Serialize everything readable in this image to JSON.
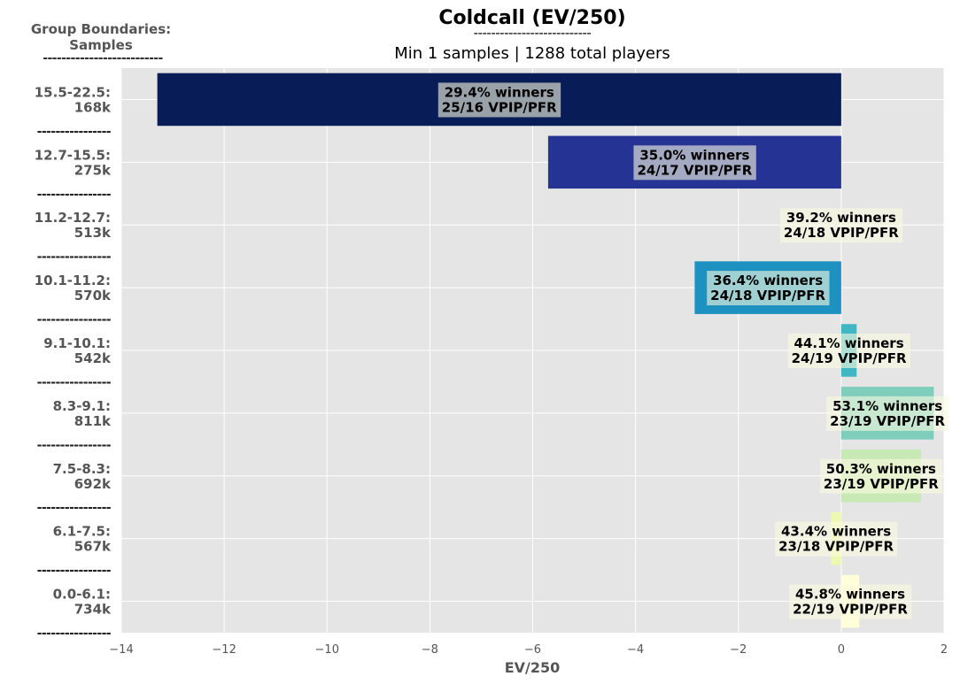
{
  "header": {
    "title": "Coldcall (EV/250)",
    "title_rule": "---------------------------",
    "subtitle": "Min 1 samples | 1288 total players",
    "group_header_line1": "Group Boundaries:",
    "group_header_line2": "Samples",
    "group_header_rule": "--------------------------"
  },
  "chart_data": {
    "type": "bar",
    "orientation": "horizontal",
    "title": "Coldcall (EV/250)",
    "subtitle": "Min 1 samples | 1288 total players",
    "xlabel": "EV/250",
    "ylabel": "Group Boundaries: Samples",
    "xlim": [
      -14,
      2
    ],
    "xticks": [
      -14,
      -12,
      -10,
      -8,
      -6,
      -4,
      -2,
      0,
      2
    ],
    "xtick_labels": [
      "−14",
      "−12",
      "−10",
      "−8",
      "−6",
      "−4",
      "−2",
      "0",
      "2"
    ],
    "grid": true,
    "row_separator": "----------------",
    "categories": [
      {
        "range": "15.5-22.5:",
        "samples": "168k",
        "value": -13.3,
        "winners": "29.4% winners",
        "vpip_pfr": "25/16 VPIP/PFR",
        "color": "#081d58"
      },
      {
        "range": "12.7-15.5:",
        "samples": "275k",
        "value": -5.7,
        "winners": "35.0% winners",
        "vpip_pfr": "24/17 VPIP/PFR",
        "color": "#253494"
      },
      {
        "range": "11.2-12.7:",
        "samples": "513k",
        "value": 0.0,
        "winners": "39.2% winners",
        "vpip_pfr": "24/18 VPIP/PFR",
        "color": "#225ea8"
      },
      {
        "range": "10.1-11.2:",
        "samples": "570k",
        "value": -2.85,
        "winners": "36.4% winners",
        "vpip_pfr": "24/18 VPIP/PFR",
        "color": "#1d91c0"
      },
      {
        "range": "9.1-10.1:",
        "samples": "542k",
        "value": 0.3,
        "winners": "44.1% winners",
        "vpip_pfr": "24/19 VPIP/PFR",
        "color": "#41b6c4"
      },
      {
        "range": "8.3-9.1:",
        "samples": "811k",
        "value": 1.8,
        "winners": "53.1% winners",
        "vpip_pfr": "23/19 VPIP/PFR",
        "color": "#7fcdbb"
      },
      {
        "range": "7.5-8.3:",
        "samples": "692k",
        "value": 1.55,
        "winners": "50.3% winners",
        "vpip_pfr": "23/19 VPIP/PFR",
        "color": "#c7e9b4"
      },
      {
        "range": "6.1-7.5:",
        "samples": "567k",
        "value": -0.2,
        "winners": "43.4% winners",
        "vpip_pfr": "23/18 VPIP/PFR",
        "color": "#edf8b1"
      },
      {
        "range": "0.0-6.1:",
        "samples": "734k",
        "value": 0.35,
        "winners": "45.8% winners",
        "vpip_pfr": "22/19 VPIP/PFR",
        "color": "#ffffd9"
      }
    ]
  }
}
